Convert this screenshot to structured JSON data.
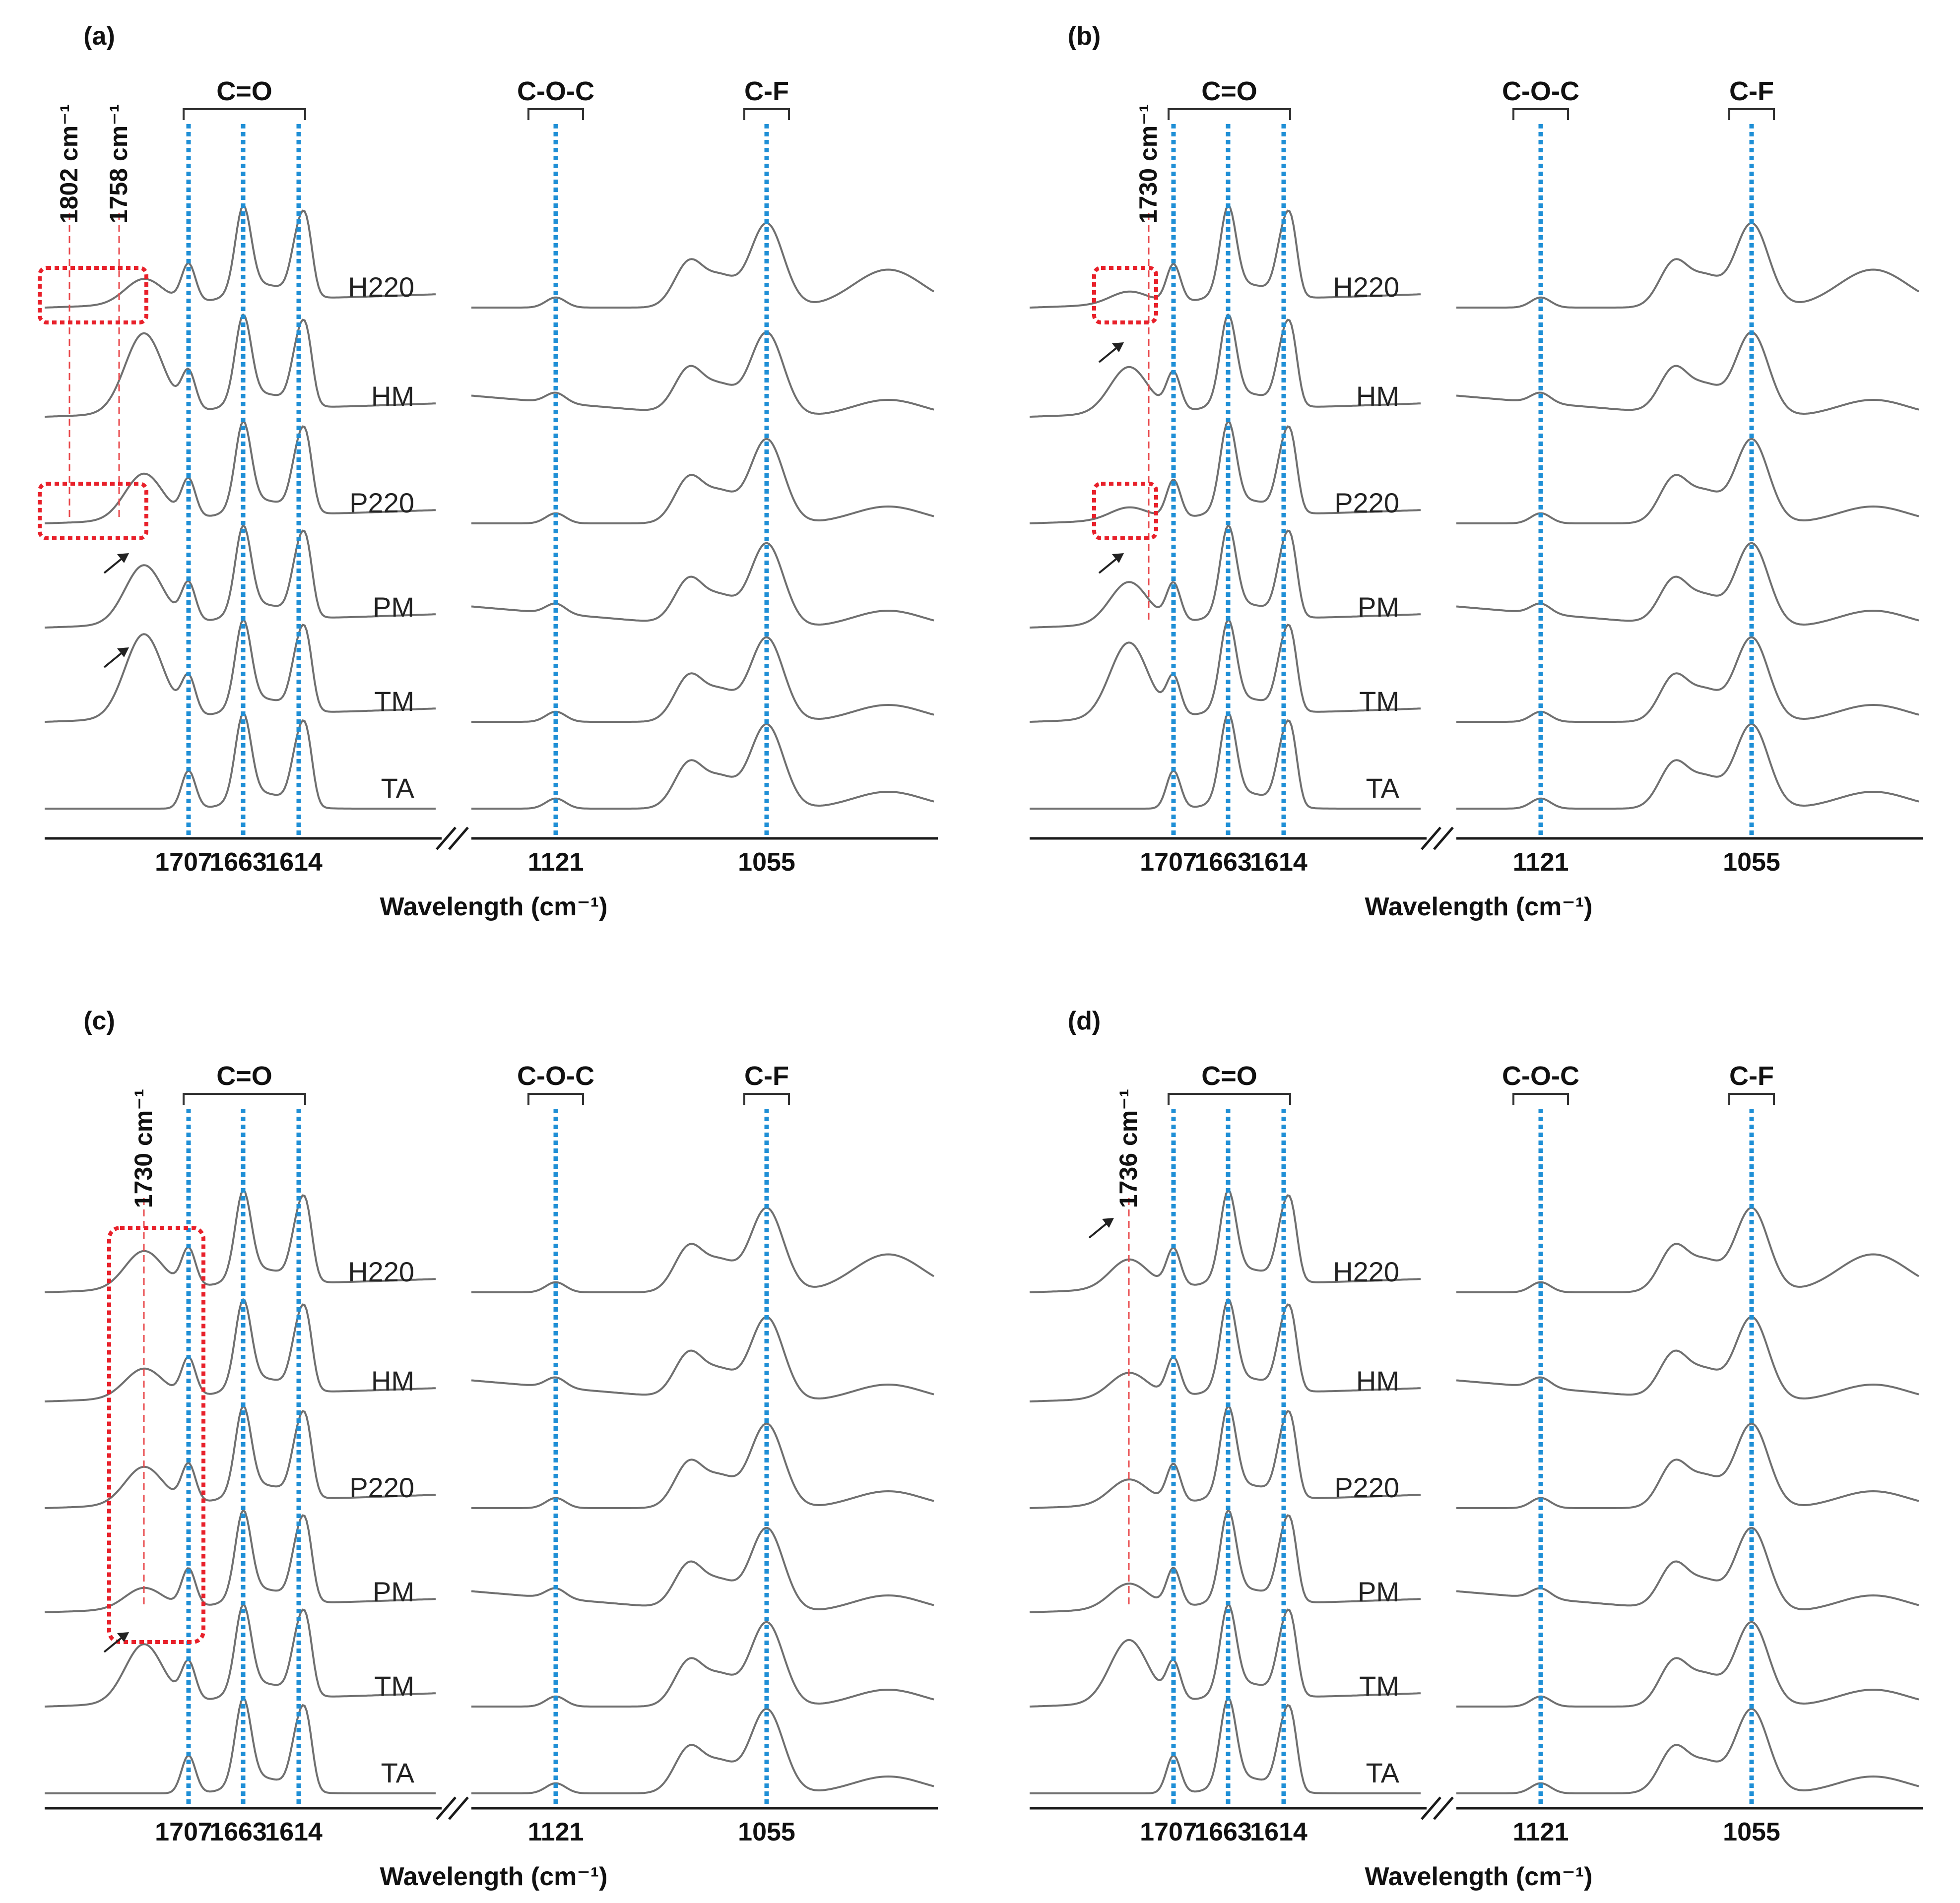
{
  "title": "",
  "colors": {
    "guide": "#1f8fd6",
    "highlight": "#e8202a",
    "curve": "#707070",
    "text": "#111111"
  },
  "chart_data": [
    {
      "type": "line",
      "panel": "(a)",
      "xlabel": "Wavelength (cm⁻¹)",
      "groups": [
        "C=O",
        "C-O-C",
        "C-F"
      ],
      "xticks_left": [
        "1707",
        "1663",
        "1614"
      ],
      "xticks_right": [
        "1121",
        "1055"
      ],
      "series": [
        "H220",
        "HM",
        "P220",
        "PM",
        "TM",
        "TA"
      ],
      "annotations": [
        "1802 cm⁻¹",
        "1758 cm⁻¹"
      ],
      "highlighted_series": [
        "H220",
        "P220"
      ],
      "arrowed_series": [
        "PM",
        "TM"
      ]
    },
    {
      "type": "line",
      "panel": "(b)",
      "xlabel": "Wavelength (cm⁻¹)",
      "groups": [
        "C=O",
        "C-O-C",
        "C-F"
      ],
      "xticks_left": [
        "1707",
        "1663",
        "1614"
      ],
      "xticks_right": [
        "1121",
        "1055"
      ],
      "series": [
        "H220",
        "HM",
        "P220",
        "PM",
        "TM",
        "TA"
      ],
      "annotations": [
        "1730 cm⁻¹"
      ],
      "highlighted_series": [
        "H220",
        "P220"
      ],
      "arrowed_series": [
        "HM",
        "PM"
      ]
    },
    {
      "type": "line",
      "panel": "(c)",
      "xlabel": "Wavelength (cm⁻¹)",
      "groups": [
        "C=O",
        "C-O-C",
        "C-F"
      ],
      "xticks_left": [
        "1707",
        "1663",
        "1614"
      ],
      "xticks_right": [
        "1121",
        "1055"
      ],
      "series": [
        "H220",
        "HM",
        "P220",
        "PM",
        "TM",
        "TA"
      ],
      "annotations": [
        "1730 cm⁻¹"
      ],
      "highlighted_series": [
        "H220",
        "HM",
        "P220",
        "PM"
      ],
      "arrowed_series": [
        "TM"
      ]
    },
    {
      "type": "line",
      "panel": "(d)",
      "xlabel": "Wavelength (cm⁻¹)",
      "groups": [
        "C=O",
        "C-O-C",
        "C-F"
      ],
      "xticks_left": [
        "1707",
        "1663",
        "1614"
      ],
      "xticks_right": [
        "1121",
        "1055"
      ],
      "series": [
        "H220",
        "HM",
        "P220",
        "PM",
        "TM",
        "TA"
      ],
      "annotations": [
        "1736 cm⁻¹"
      ],
      "highlighted_series": [],
      "arrowed_series": [
        "H220"
      ]
    }
  ]
}
